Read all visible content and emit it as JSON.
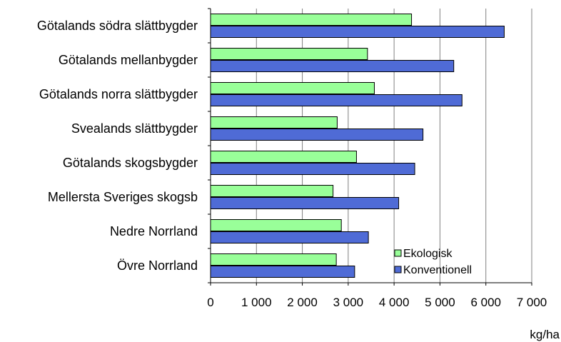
{
  "chart_data": {
    "type": "bar",
    "orientation": "horizontal",
    "categories": [
      "Götalands södra slättbygder",
      "Götalands mellanbygder",
      "Götalands norra slättbygder",
      "Svealands slättbygder",
      "Götalands skogsbygder",
      "Mellersta Sveriges skogsb",
      "Nedre Norrland",
      "Övre Norrland"
    ],
    "series": [
      {
        "name": "Ekologisk",
        "color": "#99ff99",
        "values": [
          4380,
          3420,
          3570,
          2760,
          3180,
          2670,
          2850,
          2740
        ]
      },
      {
        "name": "Konventionell",
        "color": "#4f6bd6",
        "values": [
          6400,
          5300,
          5480,
          4630,
          4450,
          4100,
          3440,
          3140
        ]
      }
    ],
    "xlim": [
      0,
      7000
    ],
    "xticks": [
      0,
      1000,
      2000,
      3000,
      4000,
      5000,
      6000,
      7000
    ],
    "xtick_labels": [
      "0",
      "1 000",
      "2 000",
      "3 000",
      "4 000",
      "5 000",
      "6 000",
      "7 000"
    ],
    "unit_label": "kg/ha",
    "grid": "vertical",
    "legend_position": "bottom-right"
  }
}
